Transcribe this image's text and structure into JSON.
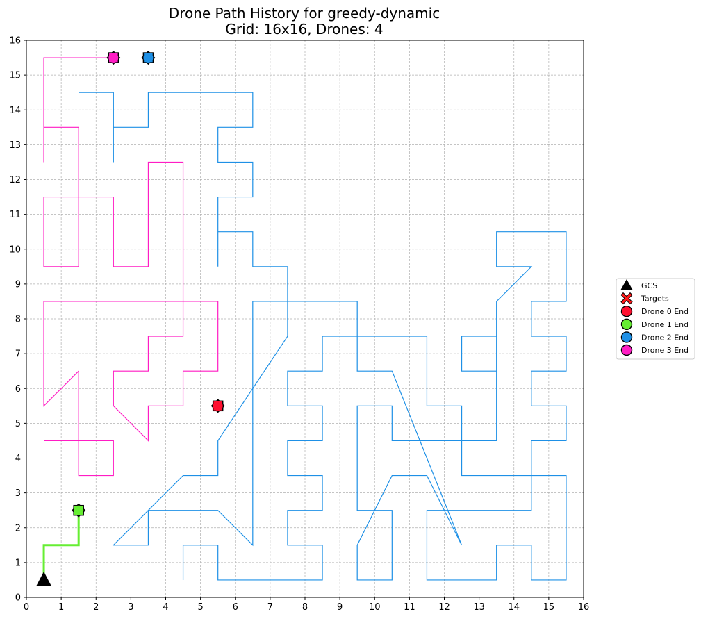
{
  "chart_data": {
    "type": "line",
    "title": "Drone Path History for greedy-dynamic",
    "subtitle": "Grid: 16x16, Drones: 4",
    "xlim": [
      0,
      16
    ],
    "ylim": [
      0,
      16
    ],
    "x_ticks": [
      "0",
      "1",
      "2",
      "3",
      "4",
      "5",
      "6",
      "7",
      "8",
      "9",
      "10",
      "11",
      "12",
      "13",
      "14",
      "15",
      "16"
    ],
    "y_ticks": [
      "0",
      "1",
      "2",
      "3",
      "4",
      "5",
      "6",
      "7",
      "8",
      "9",
      "10",
      "11",
      "12",
      "13",
      "14",
      "15",
      "16"
    ],
    "grid": true,
    "legend_position": "right",
    "gcs": {
      "label": "GCS",
      "x": 0.5,
      "y": 0.5,
      "color": "#000000"
    },
    "targets": {
      "label": "Targets",
      "color": "#ff1a1a",
      "points": []
    },
    "series": [
      {
        "name": "Drone 0",
        "end_label": "Drone 0 End",
        "color": "#ff1030",
        "path": [
          [
            5.5,
            5.5
          ]
        ]
      },
      {
        "name": "Drone 1",
        "end_label": "Drone 1 End",
        "color": "#66ee33",
        "path": [
          [
            0.5,
            0.5
          ],
          [
            0.5,
            1.5
          ],
          [
            1.5,
            1.5
          ],
          [
            1.5,
            2.5
          ]
        ]
      },
      {
        "name": "Drone 2",
        "end_label": "Drone 2 End",
        "color": "#1e90e6",
        "path": [
          [
            4.5,
            0.5
          ],
          [
            4.5,
            1.5
          ],
          [
            5.5,
            1.5
          ],
          [
            5.5,
            0.5
          ],
          [
            8.5,
            0.5
          ],
          [
            8.5,
            1.5
          ],
          [
            7.5,
            1.5
          ],
          [
            7.5,
            2.5
          ],
          [
            8.5,
            2.5
          ],
          [
            8.5,
            3.5
          ],
          [
            7.5,
            3.5
          ],
          [
            7.5,
            4.5
          ],
          [
            8.5,
            4.5
          ],
          [
            8.5,
            5.5
          ],
          [
            7.5,
            5.5
          ],
          [
            7.5,
            6.5
          ],
          [
            8.5,
            6.5
          ],
          [
            8.5,
            7.5
          ],
          [
            11.5,
            7.5
          ],
          [
            11.5,
            5.5
          ],
          [
            12.5,
            5.5
          ],
          [
            12.5,
            3.5
          ],
          [
            15.5,
            3.5
          ],
          [
            15.5,
            0.5
          ],
          [
            14.5,
            0.5
          ],
          [
            14.5,
            1.5
          ],
          [
            13.5,
            1.5
          ],
          [
            13.5,
            0.5
          ],
          [
            11.5,
            0.5
          ],
          [
            11.5,
            2.5
          ],
          [
            14.5,
            2.5
          ],
          [
            14.5,
            4.5
          ],
          [
            15.5,
            4.5
          ],
          [
            15.5,
            5.5
          ],
          [
            14.5,
            5.5
          ],
          [
            14.5,
            6.5
          ],
          [
            15.5,
            6.5
          ],
          [
            15.5,
            7.5
          ],
          [
            14.5,
            7.5
          ],
          [
            14.5,
            8.5
          ],
          [
            15.5,
            8.5
          ],
          [
            15.5,
            10.5
          ],
          [
            13.5,
            10.5
          ],
          [
            13.5,
            9.5
          ],
          [
            14.5,
            9.5
          ],
          [
            13.5,
            8.5
          ],
          [
            13.5,
            6.5
          ],
          [
            12.5,
            6.5
          ],
          [
            12.5,
            7.5
          ],
          [
            13.5,
            7.5
          ],
          [
            13.5,
            4.5
          ],
          [
            10.5,
            4.5
          ],
          [
            10.5,
            5.5
          ],
          [
            9.5,
            5.5
          ],
          [
            9.5,
            2.5
          ],
          [
            10.5,
            2.5
          ],
          [
            10.5,
            0.5
          ],
          [
            9.5,
            0.5
          ],
          [
            9.5,
            1.5
          ],
          [
            10.5,
            3.5
          ],
          [
            11.5,
            3.5
          ],
          [
            12.5,
            1.5
          ],
          [
            10.5,
            6.5
          ],
          [
            9.5,
            6.5
          ],
          [
            9.5,
            8.5
          ],
          [
            6.5,
            8.5
          ],
          [
            6.5,
            1.5
          ],
          [
            5.5,
            2.5
          ],
          [
            3.5,
            2.5
          ],
          [
            3.5,
            1.5
          ],
          [
            2.5,
            1.5
          ],
          [
            4.5,
            3.5
          ],
          [
            5.5,
            3.5
          ],
          [
            5.5,
            4.5
          ],
          [
            7.5,
            7.5
          ],
          [
            7.5,
            9.5
          ],
          [
            6.5,
            9.5
          ],
          [
            6.5,
            10.5
          ],
          [
            5.5,
            10.5
          ],
          [
            5.5,
            9.5
          ],
          [
            5.5,
            11.5
          ],
          [
            6.5,
            11.5
          ],
          [
            6.5,
            12.5
          ],
          [
            5.5,
            12.5
          ],
          [
            5.5,
            13.5
          ],
          [
            6.5,
            13.5
          ],
          [
            6.5,
            14.5
          ],
          [
            3.5,
            14.5
          ],
          [
            3.5,
            13.5
          ],
          [
            2.5,
            13.5
          ],
          [
            2.5,
            12.5
          ],
          [
            2.5,
            14.5
          ],
          [
            1.5,
            14.5
          ]
        ],
        "end": [
          3.5,
          15.5
        ]
      },
      {
        "name": "Drone 3",
        "end_label": "Drone 3 End",
        "color": "#ff1dc4",
        "path": [
          [
            0.5,
            4.5
          ],
          [
            2.5,
            4.5
          ],
          [
            2.5,
            3.5
          ],
          [
            1.5,
            3.5
          ],
          [
            1.5,
            6.5
          ],
          [
            0.5,
            5.5
          ],
          [
            0.5,
            8.5
          ],
          [
            5.5,
            8.5
          ],
          [
            5.5,
            6.5
          ],
          [
            4.5,
            6.5
          ],
          [
            4.5,
            5.5
          ],
          [
            3.5,
            5.5
          ],
          [
            3.5,
            4.5
          ],
          [
            2.5,
            5.5
          ],
          [
            2.5,
            6.5
          ],
          [
            3.5,
            6.5
          ],
          [
            3.5,
            7.5
          ],
          [
            4.5,
            7.5
          ],
          [
            4.5,
            12.5
          ],
          [
            3.5,
            12.5
          ],
          [
            3.5,
            9.5
          ],
          [
            2.5,
            9.5
          ],
          [
            2.5,
            11.5
          ],
          [
            0.5,
            11.5
          ],
          [
            0.5,
            9.5
          ],
          [
            1.5,
            9.5
          ],
          [
            1.5,
            13.5
          ],
          [
            0.5,
            13.5
          ],
          [
            0.5,
            12.5
          ],
          [
            0.5,
            15.5
          ],
          [
            2.5,
            15.5
          ]
        ]
      }
    ],
    "legend": [
      "GCS",
      "Targets",
      "Drone 0 End",
      "Drone 1 End",
      "Drone 2 End",
      "Drone 3 End"
    ]
  }
}
